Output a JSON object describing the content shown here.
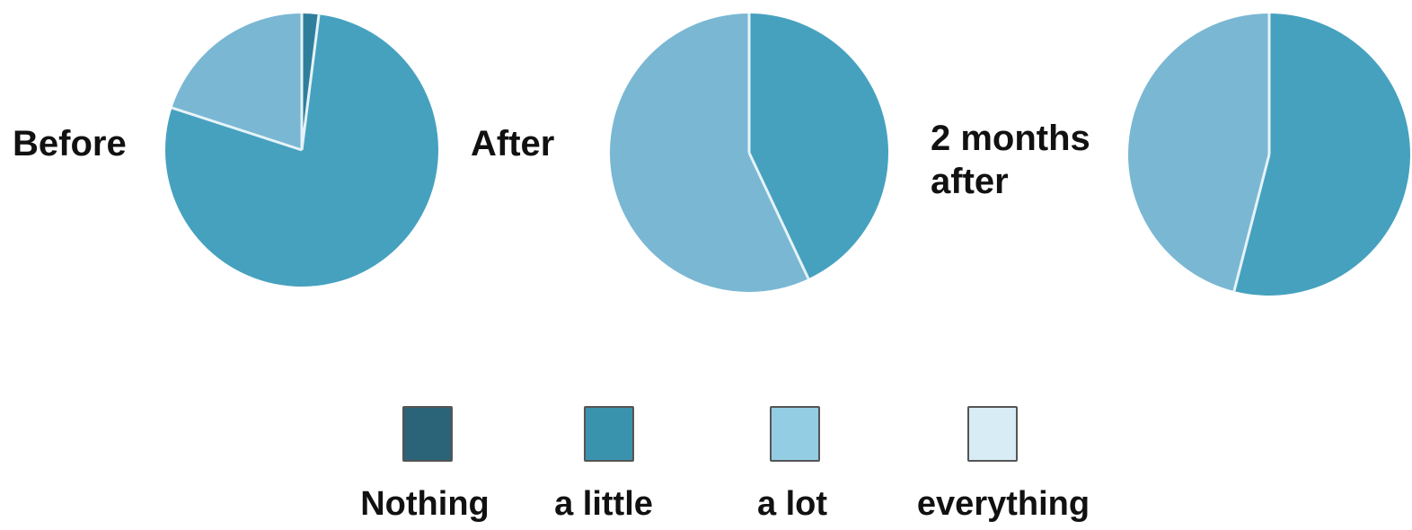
{
  "chart_data": [
    {
      "type": "pie",
      "label_lines": [
        "Before"
      ],
      "series": [
        {
          "name": "Nothing",
          "value": 2
        },
        {
          "name": "a little",
          "value": 78
        },
        {
          "name": "a lot",
          "value": 20
        },
        {
          "name": "everything",
          "value": 0
        }
      ]
    },
    {
      "type": "pie",
      "label_lines": [
        "After"
      ],
      "series": [
        {
          "name": "Nothing",
          "value": 0
        },
        {
          "name": "a little",
          "value": 43
        },
        {
          "name": "a lot",
          "value": 57
        },
        {
          "name": "everything",
          "value": 0
        }
      ]
    },
    {
      "type": "pie",
      "label_lines": [
        "2 months",
        "after"
      ],
      "series": [
        {
          "name": "Nothing",
          "value": 0
        },
        {
          "name": "a little",
          "value": 54
        },
        {
          "name": "a lot",
          "value": 46
        },
        {
          "name": "everything",
          "value": 0
        }
      ]
    }
  ],
  "legend": {
    "items": [
      {
        "label": "Nothing",
        "swatch_color": "#2b6479",
        "pie_color": "#2f7f9c"
      },
      {
        "label": "a little",
        "swatch_color": "#3a93ad",
        "pie_color": "#46a1bf"
      },
      {
        "label": "a lot",
        "swatch_color": "#93cde3",
        "pie_color": "#7ab7d3"
      },
      {
        "label": "everything",
        "swatch_color": "#d7ecf5",
        "pie_color": "#d7ecf5"
      }
    ]
  },
  "colors": {
    "separator": "#e6f3f8",
    "text": "#111111"
  }
}
